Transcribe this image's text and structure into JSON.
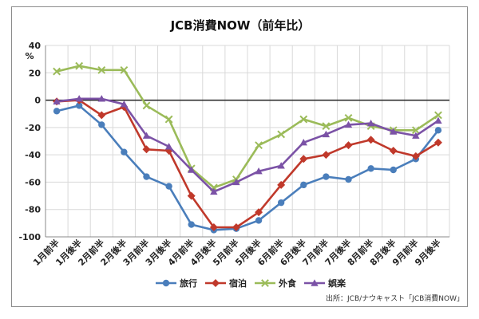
{
  "chart_data": {
    "type": "line",
    "title": "JCB消費NOW（前年比）",
    "ylabel": "%",
    "xlabel": "",
    "ylim": [
      -100,
      40
    ],
    "yticks": [
      40,
      20,
      0,
      -20,
      -40,
      -60,
      -80,
      -100
    ],
    "grid": true,
    "legend_position": "bottom",
    "source": "出所：JCB/ナウキャスト「JCB消費NOW」",
    "categories": [
      "1月前半",
      "1月後半",
      "2月前半",
      "2月後半",
      "3月前半",
      "3月後半",
      "4月前半",
      "4月後半",
      "5月前半",
      "5月後半",
      "6月前半",
      "6月後半",
      "7月前半",
      "7月後半",
      "8月前半",
      "8月後半",
      "9月前半",
      "9月後半"
    ],
    "series": [
      {
        "name": "旅行",
        "color": "#4a7ebb",
        "marker": "circle",
        "values": [
          -8,
          -4,
          -18,
          -38,
          -56,
          -63,
          -91,
          -95,
          -94,
          -88,
          -75,
          -62,
          -56,
          -58,
          -50,
          -51,
          -43,
          -22
        ]
      },
      {
        "name": "宿泊",
        "color": "#c0392b",
        "marker": "diamond",
        "values": [
          -1,
          0,
          -11,
          -5,
          -36,
          -37,
          -70,
          -93,
          -93,
          -82,
          -62,
          -43,
          -40,
          -33,
          -29,
          -37,
          -41,
          -31
        ]
      },
      {
        "name": "外食",
        "color": "#9bbb59",
        "marker": "x",
        "values": [
          21,
          25,
          22,
          22,
          -4,
          -14,
          -50,
          -64,
          -58,
          -33,
          -25,
          -14,
          -19,
          -13,
          -19,
          -22,
          -22,
          -11
        ]
      },
      {
        "name": "娯楽",
        "color": "#7b52a6",
        "marker": "triangle",
        "values": [
          -1,
          1,
          1,
          -3,
          -26,
          -34,
          -51,
          -67,
          -60,
          -52,
          -48,
          -31,
          -25,
          -18,
          -17,
          -23,
          -26,
          -15
        ]
      }
    ]
  }
}
